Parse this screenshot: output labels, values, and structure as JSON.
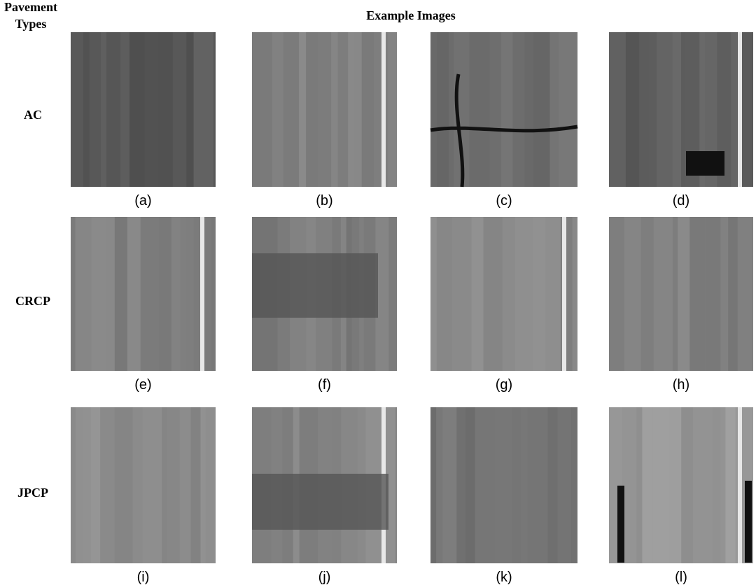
{
  "header": {
    "row_header": [
      "Pavement",
      "Types"
    ],
    "column_header": "Example Images"
  },
  "rows": [
    {
      "label": "AC",
      "captions": [
        "(a)",
        "(b)",
        "(c)",
        "(d)"
      ]
    },
    {
      "label": "CRCP",
      "captions": [
        "(e)",
        "(f)",
        "(g)",
        "(h)"
      ]
    },
    {
      "label": "JPCP",
      "captions": [
        "(i)",
        "(j)",
        "(k)",
        "(l)"
      ]
    }
  ]
}
